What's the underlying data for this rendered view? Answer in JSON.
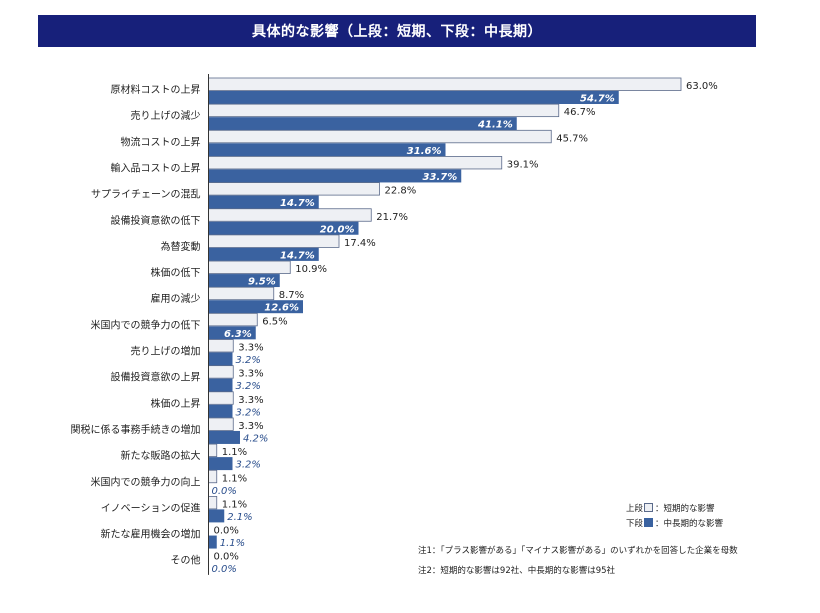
{
  "title": "具体的な影響（上段：短期、下段：中長期）",
  "legend": {
    "short": "上段",
    "short_desc": "：短期的な影響",
    "mid": "下段",
    "mid_desc": "：中長期的な影響"
  },
  "notes": [
    "注1：「プラス影響がある」「マイナス影響がある」のいずれかを回答した企業を母数",
    "注2：短期的な影響は92社、中長期的な影響は95社"
  ],
  "colors": {
    "title_bg": "#17207a",
    "short_fill": "#eef0f4",
    "short_stroke": "#5a6a8a",
    "mid_fill": "#3a62a0",
    "mid_label": "#2a4e8c"
  },
  "chart_data": {
    "type": "bar",
    "orientation": "horizontal",
    "value_format": "percent, one decimal",
    "categories": [
      "原材料コストの上昇",
      "売り上げの減少",
      "物流コストの上昇",
      "輸入品コストの上昇",
      "サプライチェーンの混乱",
      "設備投資意欲の低下",
      "為替変動",
      "株価の低下",
      "雇用の減少",
      "米国内での競争力の低下",
      "売り上げの増加",
      "設備投資意欲の上昇",
      "株価の上昇",
      "関税に係る事務手続きの増加",
      "新たな販路の拡大",
      "米国内での競争力の向上",
      "イノベーションの促進",
      "新たな雇用機会の増加",
      "その他"
    ],
    "series": [
      {
        "name": "短期的な影響",
        "values": [
          63.0,
          46.7,
          45.7,
          39.1,
          22.8,
          21.7,
          17.4,
          10.9,
          8.7,
          6.5,
          3.3,
          3.3,
          3.3,
          3.3,
          1.1,
          1.1,
          1.1,
          0.0,
          0.0
        ]
      },
      {
        "name": "中長期的な影響",
        "values": [
          54.7,
          41.1,
          31.6,
          33.7,
          14.7,
          20.0,
          14.7,
          9.5,
          12.6,
          6.3,
          3.2,
          3.2,
          3.2,
          4.2,
          3.2,
          0.0,
          2.1,
          1.1,
          0.0
        ]
      }
    ],
    "grid": false,
    "legend_position": "bottom-right"
  }
}
